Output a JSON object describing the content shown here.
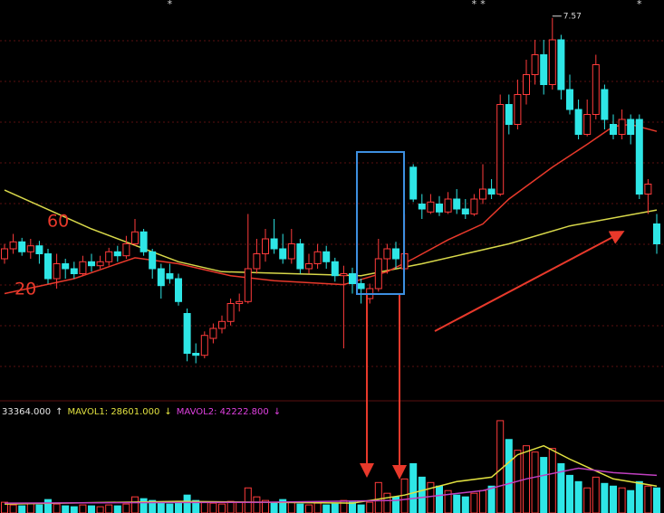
{
  "chart_data": [
    {
      "type": "candlestick",
      "open": [
        5.15,
        5.25,
        5.32,
        5.22,
        5.28,
        5.2,
        4.95,
        5.1,
        5.05,
        5.0,
        5.12,
        5.08,
        5.12,
        5.22,
        5.18,
        5.3,
        5.42,
        5.22,
        5.05,
        5.0,
        4.95,
        4.6,
        4.2,
        4.18,
        4.35,
        4.45,
        4.52,
        4.7,
        4.72,
        5.05,
        5.2,
        5.35,
        5.25,
        5.15,
        5.3,
        5.05,
        5.1,
        5.22,
        5.12,
        4.98,
        5.0,
        4.9,
        4.75,
        4.85,
        5.15,
        5.25,
        5.05,
        6.07,
        5.7,
        5.62,
        5.7,
        5.62,
        5.75,
        5.65,
        5.6,
        5.75,
        5.85,
        5.8,
        6.7,
        6.5,
        6.8,
        7.0,
        7.2,
        6.9,
        7.35,
        6.85,
        6.65,
        6.4,
        6.6,
        6.85,
        6.5,
        6.4,
        6.55,
        6.55,
        5.8,
        5.5
      ],
      "high": [
        5.3,
        5.4,
        5.36,
        5.35,
        5.33,
        5.25,
        5.2,
        5.15,
        5.12,
        5.18,
        5.2,
        5.18,
        5.26,
        5.28,
        5.38,
        5.55,
        5.45,
        5.25,
        5.1,
        5.1,
        5.0,
        4.65,
        4.3,
        4.42,
        4.5,
        4.58,
        4.75,
        4.8,
        5.6,
        5.35,
        5.45,
        5.55,
        5.4,
        5.45,
        5.35,
        5.2,
        5.3,
        5.28,
        5.16,
        5.08,
        5.06,
        4.95,
        4.9,
        5.35,
        5.3,
        5.32,
        5.6,
        6.1,
        5.8,
        5.8,
        5.78,
        5.82,
        5.85,
        5.75,
        5.8,
        6.1,
        5.95,
        6.8,
        6.8,
        6.95,
        7.15,
        7.35,
        7.35,
        7.57,
        7.4,
        7.0,
        6.75,
        6.75,
        7.2,
        6.9,
        6.6,
        6.65,
        6.6,
        6.6,
        5.95,
        5.6
      ],
      "low": [
        5.1,
        5.2,
        5.18,
        5.15,
        5.1,
        4.9,
        4.85,
        4.95,
        4.95,
        4.98,
        5.02,
        5.05,
        5.08,
        5.12,
        5.15,
        5.28,
        5.18,
        4.95,
        4.75,
        4.9,
        4.68,
        4.12,
        4.1,
        4.15,
        4.3,
        4.4,
        4.48,
        4.62,
        4.7,
        5.0,
        5.12,
        5.2,
        5.1,
        5.1,
        5.0,
        5.0,
        5.05,
        5.05,
        4.92,
        4.25,
        4.8,
        4.7,
        4.7,
        4.82,
        5.0,
        5.05,
        5.02,
        5.72,
        5.55,
        5.6,
        5.58,
        5.6,
        5.6,
        5.55,
        5.58,
        5.7,
        5.75,
        5.78,
        6.4,
        6.45,
        6.7,
        6.9,
        6.8,
        6.85,
        6.75,
        6.6,
        6.35,
        6.38,
        6.55,
        6.45,
        6.35,
        6.35,
        6.3,
        5.75,
        5.6,
        5.2
      ],
      "close": [
        5.25,
        5.32,
        5.22,
        5.28,
        5.2,
        4.95,
        5.1,
        5.05,
        5.0,
        5.12,
        5.08,
        5.12,
        5.22,
        5.18,
        5.3,
        5.42,
        5.22,
        5.05,
        4.88,
        4.95,
        4.72,
        4.2,
        4.18,
        4.38,
        4.45,
        4.52,
        4.7,
        4.72,
        5.05,
        5.2,
        5.35,
        5.25,
        5.15,
        5.3,
        5.05,
        5.1,
        5.22,
        5.12,
        4.98,
        5.0,
        4.9,
        4.85,
        4.85,
        5.15,
        5.25,
        5.15,
        5.2,
        5.75,
        5.65,
        5.72,
        5.62,
        5.75,
        5.65,
        5.6,
        5.75,
        5.85,
        5.8,
        6.7,
        6.5,
        6.8,
        7.0,
        7.2,
        6.9,
        7.35,
        6.85,
        6.65,
        6.4,
        6.6,
        7.1,
        6.55,
        6.4,
        6.55,
        6.4,
        5.8,
        5.9,
        5.3
      ],
      "ylim": [
        3.75,
        7.75
      ],
      "up_color": "#ff3b3b",
      "down_color": "#2ee6e6",
      "lines": [
        {
          "name": "60",
          "color": "#d8d84a",
          "label_color": "#e8392b",
          "x": [
            0,
            10,
            20,
            25,
            41,
            48,
            58,
            65,
            75
          ],
          "values": [
            5.84,
            5.45,
            5.12,
            5.02,
            4.98,
            5.1,
            5.3,
            5.48,
            5.64
          ]
        },
        {
          "name": "20",
          "color": "#e8392b",
          "label_color": "#e8392b",
          "x": [
            0,
            8,
            15,
            20,
            26,
            31,
            39,
            44,
            47,
            51,
            55,
            58,
            63,
            67,
            70,
            72,
            75
          ],
          "values": [
            4.8,
            4.95,
            5.16,
            5.1,
            4.98,
            4.93,
            4.89,
            5.02,
            5.15,
            5.34,
            5.5,
            5.75,
            6.07,
            6.3,
            6.48,
            6.5,
            6.43
          ]
        }
      ],
      "event_marks": {
        "x": [
          19,
          54,
          55,
          73
        ],
        "labels": [
          "*",
          "*",
          "*",
          "*"
        ]
      }
    },
    {
      "type": "bar",
      "values": [
        12000,
        9000,
        8000,
        11000,
        9000,
        15000,
        10000,
        8000,
        7000,
        9000,
        8000,
        7000,
        9000,
        8000,
        10000,
        18000,
        16000,
        14000,
        12000,
        10000,
        12000,
        20000,
        14000,
        12000,
        11000,
        10000,
        13000,
        12000,
        28000,
        18000,
        14000,
        12000,
        15000,
        12000,
        10000,
        9000,
        11000,
        9000,
        10000,
        14000,
        12000,
        9000,
        12000,
        34000,
        22000,
        18000,
        38000,
        55000,
        40000,
        34000,
        30000,
        25000,
        20000,
        18000,
        22000,
        25000,
        30000,
        103000,
        82000,
        70000,
        75000,
        68000,
        62000,
        72000,
        55000,
        42000,
        35000,
        28000,
        40000,
        33000,
        30000,
        28000,
        25000,
        35000,
        30000,
        28000
      ],
      "ylim": [
        0,
        110000
      ],
      "header": [
        {
          "text": "33364.000",
          "color": "#e6e6e6"
        },
        {
          "text": "↑",
          "color": "#e6e6e6"
        },
        {
          "text": "MAVOL1: 28601.000",
          "color": "#e0e040"
        },
        {
          "text": "↓",
          "color": "#e0e040"
        },
        {
          "text": "MAVOL2: 42222.800",
          "color": "#e040e0"
        },
        {
          "text": "↓",
          "color": "#e040e0"
        }
      ],
      "lines": [
        {
          "name": "MAVOL1",
          "color": "#e0e040",
          "x": [
            0,
            20,
            40,
            46,
            52,
            56,
            59,
            62,
            65,
            70,
            75
          ],
          "values": [
            10000,
            13000,
            11000,
            20000,
            35000,
            40000,
            65000,
            75000,
            60000,
            38000,
            30000
          ]
        },
        {
          "name": "MAVOL2",
          "color": "#c040c0",
          "x": [
            0,
            30,
            45,
            55,
            60,
            66,
            70,
            75
          ],
          "values": [
            11000,
            12000,
            14000,
            25000,
            38000,
            50000,
            45000,
            42000
          ]
        }
      ]
    }
  ]
}
